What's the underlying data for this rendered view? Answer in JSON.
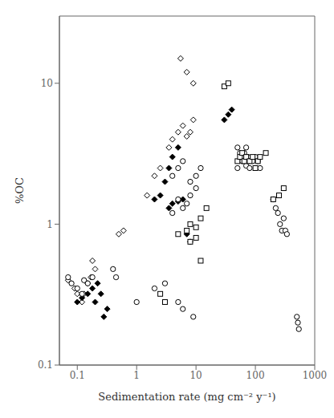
{
  "chart_data": {
    "type": "scatter",
    "xlabel": "Sedimentation rate (mg cm⁻² y⁻¹)",
    "ylabel": "%OC",
    "log": true,
    "grid": false,
    "xlim": [
      0.05,
      1000
    ],
    "ylim": [
      0.1,
      30
    ],
    "xticks": [
      0.1,
      1,
      10,
      100,
      1000
    ],
    "yticks": [
      0.1,
      1,
      10
    ],
    "series": [
      {
        "marker": "open_diamond",
        "color": "black",
        "x": [
          0.07,
          0.09,
          0.1,
          0.12,
          0.13,
          0.15,
          0.17,
          0.18,
          0.2,
          0.5,
          0.6,
          1.5,
          2.0,
          2.5,
          3.5,
          4.0,
          5.0,
          6.0,
          7.0,
          8.0,
          9.0,
          5.5,
          7.0,
          9.0
        ],
        "values": [
          0.4,
          0.35,
          0.32,
          0.28,
          0.32,
          0.38,
          0.42,
          0.55,
          0.48,
          0.85,
          0.9,
          1.6,
          2.2,
          2.5,
          3.5,
          4.0,
          4.5,
          5.0,
          4.2,
          4.5,
          5.5,
          15.0,
          12.0,
          10.0
        ]
      },
      {
        "marker": "filled_diamond",
        "color": "black",
        "x": [
          0.1,
          0.12,
          0.15,
          0.18,
          0.2,
          0.22,
          0.25,
          0.28,
          0.32,
          2.0,
          2.5,
          3.0,
          3.5,
          4.0,
          5.0,
          3.5,
          4.0,
          5.0,
          6.0,
          7.0,
          8.0,
          30.0,
          35.0,
          40.0
        ],
        "values": [
          0.28,
          0.3,
          0.32,
          0.35,
          0.28,
          0.38,
          0.32,
          0.22,
          0.25,
          1.5,
          1.6,
          2.0,
          2.5,
          3.0,
          3.5,
          1.3,
          1.4,
          1.45,
          1.5,
          0.85,
          0.75,
          5.5,
          6.0,
          6.5
        ]
      },
      {
        "marker": "open_circle",
        "color": "black",
        "x": [
          0.07,
          0.08,
          0.1,
          0.12,
          0.13,
          0.15,
          0.18,
          0.4,
          0.45,
          1.0,
          2.0,
          3.0,
          4.0,
          5.0,
          6.0,
          7.0,
          8.0,
          10.0,
          12.0,
          4.0,
          5.0,
          6.0,
          8.0,
          10.0,
          50.0,
          55.0,
          60.0,
          65.0,
          70.0,
          75.0,
          80.0,
          50.0,
          60.0,
          70.0,
          80.0,
          90.0,
          100.0,
          110.0,
          120.0,
          200.0,
          220.0,
          240.0,
          260.0,
          280.0,
          300.0,
          320.0,
          340.0,
          500.0,
          520.0,
          540.0,
          5.0,
          6.0,
          9.0
        ],
        "values": [
          0.42,
          0.38,
          0.35,
          0.32,
          0.4,
          0.38,
          0.42,
          0.48,
          0.42,
          0.28,
          0.35,
          0.38,
          1.2,
          1.5,
          1.3,
          1.4,
          2.0,
          2.2,
          2.5,
          2.2,
          2.5,
          2.8,
          1.6,
          1.8,
          3.5,
          3.2,
          3.0,
          3.2,
          3.5,
          3.0,
          2.8,
          2.5,
          2.8,
          2.6,
          2.5,
          2.8,
          3.0,
          2.8,
          2.5,
          1.5,
          1.3,
          1.2,
          1.0,
          0.9,
          1.1,
          0.9,
          0.85,
          0.22,
          0.2,
          0.18,
          0.28,
          0.25,
          0.22
        ]
      },
      {
        "marker": "open_square",
        "color": "black",
        "x": [
          5.0,
          7.0,
          8.0,
          10.0,
          12.0,
          15.0,
          8.0,
          10.0,
          12.0,
          50.0,
          55.0,
          60.0,
          65.0,
          70.0,
          80.0,
          90.0,
          100.0,
          110.0,
          120.0,
          150.0,
          200.0,
          250.0,
          300.0,
          30.0,
          35.0,
          2.5,
          3.0
        ],
        "values": [
          0.85,
          0.9,
          1.0,
          0.95,
          1.1,
          1.3,
          0.75,
          0.8,
          0.55,
          2.8,
          3.0,
          3.2,
          2.8,
          3.0,
          2.8,
          3.0,
          2.5,
          2.8,
          3.0,
          3.2,
          1.5,
          1.6,
          1.8,
          9.5,
          10.0,
          0.32,
          0.28
        ]
      }
    ]
  }
}
